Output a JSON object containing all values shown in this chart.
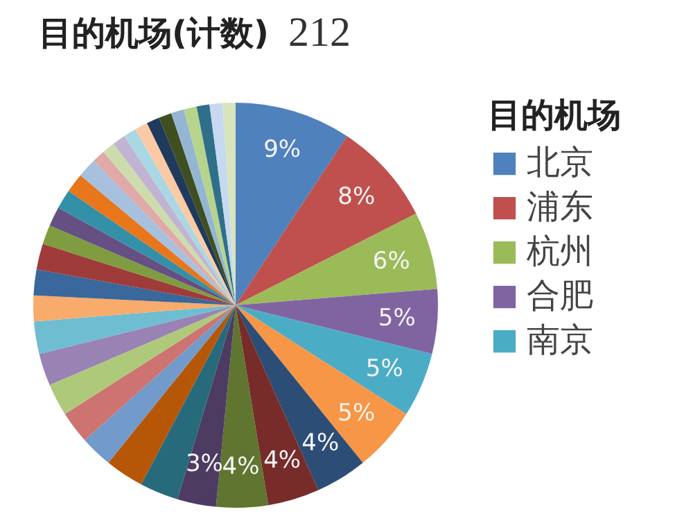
{
  "chart_data": {
    "type": "pie",
    "title": "目的机场(计数)",
    "annotations": [
      "212"
    ],
    "legend_title": "目的机场",
    "legend": "right",
    "categories": [
      "北京",
      "浦东",
      "杭州",
      "合肥",
      "南京",
      null,
      null,
      null,
      null,
      null,
      null,
      null,
      null,
      null,
      null,
      null,
      null,
      null,
      null,
      null,
      null,
      null,
      null,
      null,
      null,
      null,
      null,
      null,
      null,
      null,
      null,
      null,
      null,
      null,
      null,
      null,
      null
    ],
    "values": [
      9,
      8,
      6,
      5,
      5,
      5,
      4,
      4,
      4,
      3,
      3,
      3,
      2.5,
      2.5,
      2.5,
      2.5,
      2.5,
      2,
      2,
      2,
      1.5,
      1.5,
      1.5,
      1.5,
      1.5,
      1,
      1,
      1,
      1,
      1,
      1,
      1,
      1,
      1,
      1,
      1,
      1
    ],
    "value_labels": [
      "9%",
      "8%",
      "6%",
      "5%",
      "5%",
      "5%",
      "4%",
      "4%",
      "4%",
      "3%",
      null,
      null,
      null,
      null,
      null,
      null,
      null,
      null,
      null,
      null,
      null,
      null,
      null,
      null,
      null,
      null,
      null,
      null,
      null,
      null,
      null,
      null,
      null,
      null,
      null,
      null,
      null
    ],
    "colors": [
      "#4f81bd",
      "#c0504d",
      "#9bbb59",
      "#8064a2",
      "#4bacc6",
      "#f79646",
      "#2c4d75",
      "#772c2a",
      "#5f7530",
      "#4d3b62",
      "#276a7c",
      "#b65708",
      "#729aca",
      "#cd7371",
      "#afc97a",
      "#9983b5",
      "#6fbdd1",
      "#f9ab6b",
      "#3a679c",
      "#9f3b38",
      "#7f9c40",
      "#664f83",
      "#3490a6",
      "#e8761b",
      "#a7c0de",
      "#e0a9a8",
      "#cddcac",
      "#c1b4d2",
      "#a9d8e4",
      "#fbcaa4",
      "#1f3a5c",
      "#3f4f20",
      "#94b6d2",
      "#b7d48d",
      "#2f6f8a",
      "#c6d9f0",
      "#d7e4bd"
    ]
  }
}
